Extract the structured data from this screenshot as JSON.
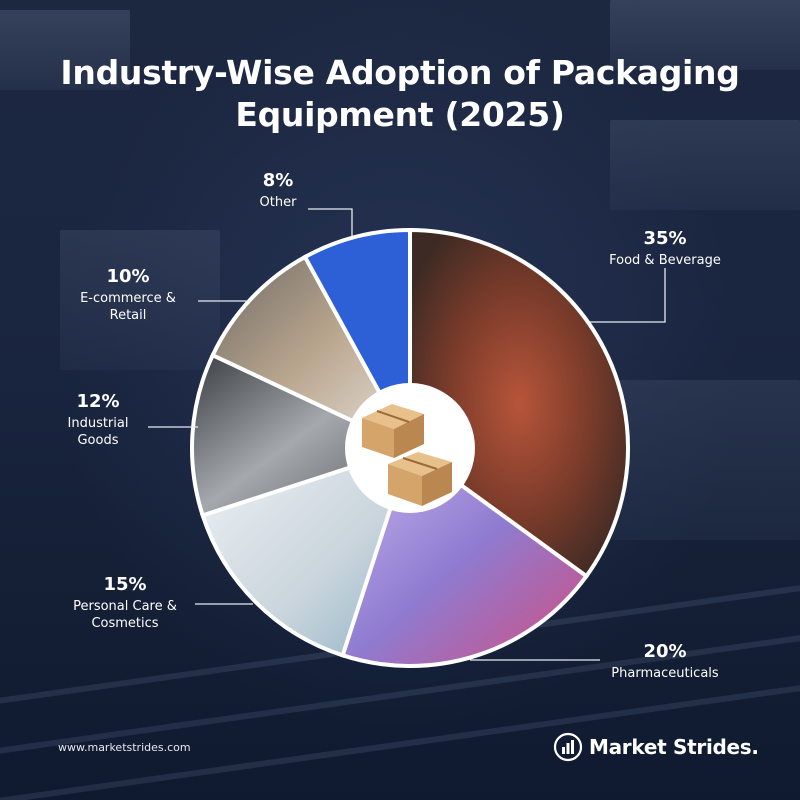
{
  "title_lines": [
    "Industry-Wise Adoption of Packaging",
    "Equipment (2025)"
  ],
  "colors": {
    "background": "#1a2540",
    "accent_slice": "#2d5fd6",
    "food_beverage": "#7a3b2a",
    "pharmaceuticals": "#9c8fd0",
    "personal_care": "#c9d4dc",
    "industrial_goods": "#8f949b",
    "ecommerce": "#a79b8e",
    "center_box": "#d7ac74",
    "text": "#ffffff"
  },
  "chart_data": {
    "type": "pie",
    "title": "Industry-Wise Adoption of Packaging Equipment (2025)",
    "unit": "%",
    "slices": [
      {
        "key": "food",
        "label": "Food & Beverage",
        "label_lines": [
          "Food & Beverage"
        ],
        "value": 35,
        "display": "35%"
      },
      {
        "key": "pharma",
        "label": "Pharmaceuticals",
        "label_lines": [
          "Pharmaceuticals"
        ],
        "value": 20,
        "display": "20%"
      },
      {
        "key": "personal",
        "label": "Personal Care & Cosmetics",
        "label_lines": [
          "Personal Care &",
          "Cosmetics"
        ],
        "value": 15,
        "display": "15%"
      },
      {
        "key": "industrial",
        "label": "Industrial Goods",
        "label_lines": [
          "Industrial",
          "Goods"
        ],
        "value": 12,
        "display": "12%"
      },
      {
        "key": "ecommerce",
        "label": "E-commerce & Retail",
        "label_lines": [
          "E-commerce &",
          "Retail"
        ],
        "value": 10,
        "display": "10%"
      },
      {
        "key": "other",
        "label": "Other",
        "label_lines": [
          "Other"
        ],
        "value": 8,
        "display": "8%"
      }
    ],
    "start_angle_deg": 0,
    "direction": "clockwise",
    "center_icon": "cardboard-boxes-icon"
  },
  "footer": {
    "url": "www.marketstrides.com",
    "brand": "Market Strides."
  },
  "icons": [
    "cardboard-boxes-icon",
    "bar-chart-logo-icon"
  ]
}
